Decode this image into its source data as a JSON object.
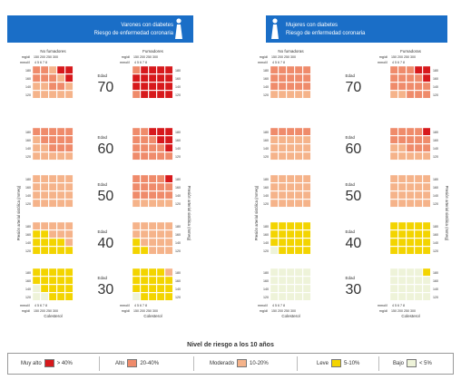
{
  "colors": {
    "header_blue": "#1a6ec7",
    "very_high": "#d7191c",
    "high": "#ef8b6b",
    "moderate": "#f5b38a",
    "low": "#f3d400",
    "very_low": "#eef3d9"
  },
  "panels": [
    {
      "title_line1": "Varones con diabetes",
      "title_line2": "Riesgo de enfermedad coronaria",
      "icon": "male-figure-icon",
      "icon_side": "right",
      "left_grid_label": "No fumadores",
      "right_grid_label": "Fumadores",
      "chol_row_label": "mg/dl",
      "chol_ticks": "150 200 250 300",
      "mmol_row_label": "mmol/l",
      "mmol_ticks": "4  5  6  7  8",
      "bp_axis_label": "Presión arterial sistólica (mmHg)",
      "bp_ticks": [
        "180",
        "160",
        "140",
        "120"
      ],
      "age_label": "Edad",
      "bottom_label": "Colesterol"
    },
    {
      "title_line1": "Mujeres con diabetes",
      "title_line2": "Riesgo de enfermedad coronaria",
      "icon": "female-figure-icon",
      "icon_side": "left",
      "left_grid_label": "No fumadoras",
      "right_grid_label": "Fumadoras",
      "chol_row_label": "mg/dl",
      "chol_ticks": "150 200 250 300",
      "mmol_row_label": "mmol/l",
      "mmol_ticks": "4  5  6  7  8",
      "bp_axis_label": "Presión arterial sistólica (mmHg)",
      "bp_ticks": [
        "180",
        "160",
        "140",
        "120"
      ],
      "age_label": "Edad",
      "bottom_label": "Colesterol"
    }
  ],
  "chart_data": {
    "type": "heatmap",
    "level_codes": {
      "VH": "Muy alto",
      "H": "Alto",
      "M": "Moderado",
      "L": "Leve",
      "VL": "Bajo"
    },
    "x_dimension": "Colesterol (mmol/l: 4, 5, 6, 7, 8)",
    "y_dimension": "Presión arterial sistólica (180, 160, 140, 120)",
    "ages": [
      "70",
      "60",
      "50",
      "40",
      "30"
    ],
    "men": {
      "no_smoker": [
        [
          [
            "H",
            "H",
            "M",
            "VH",
            "VH"
          ],
          [
            "H",
            "H",
            "H",
            "M",
            "VH"
          ],
          [
            "M",
            "M",
            "H",
            "H",
            "M"
          ],
          [
            "M",
            "M",
            "M",
            "M",
            "M"
          ]
        ],
        [
          [
            "H",
            "H",
            "H",
            "H",
            "H"
          ],
          [
            "M",
            "H",
            "H",
            "H",
            "H"
          ],
          [
            "M",
            "M",
            "H",
            "H",
            "H"
          ],
          [
            "M",
            "M",
            "M",
            "M",
            "M"
          ]
        ],
        [
          [
            "M",
            "M",
            "M",
            "M",
            "M"
          ],
          [
            "M",
            "M",
            "M",
            "M",
            "M"
          ],
          [
            "M",
            "M",
            "M",
            "M",
            "M"
          ],
          [
            "M",
            "M",
            "M",
            "M",
            "M"
          ]
        ],
        [
          [
            "M",
            "M",
            "M",
            "M",
            "M"
          ],
          [
            "L",
            "L",
            "M",
            "M",
            "M"
          ],
          [
            "L",
            "L",
            "L",
            "L",
            "M"
          ],
          [
            "L",
            "L",
            "L",
            "L",
            "L"
          ]
        ],
        [
          [
            "L",
            "L",
            "L",
            "L",
            "L"
          ],
          [
            "L",
            "L",
            "L",
            "L",
            "L"
          ],
          [
            "VL",
            "L",
            "L",
            "L",
            "L"
          ],
          [
            "VL",
            "VL",
            "L",
            "L",
            "L"
          ]
        ]
      ],
      "smoker": [
        [
          [
            "H",
            "VH",
            "VH",
            "VH",
            "VH"
          ],
          [
            "VH",
            "VH",
            "VH",
            "VH",
            "VH"
          ],
          [
            "VH",
            "VH",
            "VH",
            "VH",
            "VH"
          ],
          [
            "H",
            "VH",
            "VH",
            "VH",
            "VH"
          ]
        ],
        [
          [
            "H",
            "H",
            "VH",
            "VH",
            "VH"
          ],
          [
            "H",
            "H",
            "H",
            "VH",
            "VH"
          ],
          [
            "H",
            "H",
            "H",
            "H",
            "VH"
          ],
          [
            "H",
            "H",
            "H",
            "H",
            "H"
          ]
        ],
        [
          [
            "H",
            "H",
            "H",
            "H",
            "VH"
          ],
          [
            "H",
            "H",
            "H",
            "H",
            "H"
          ],
          [
            "H",
            "H",
            "H",
            "H",
            "H"
          ],
          [
            "M",
            "M",
            "M",
            "M",
            "M"
          ]
        ],
        [
          [
            "M",
            "M",
            "M",
            "M",
            "M"
          ],
          [
            "M",
            "M",
            "M",
            "M",
            "M"
          ],
          [
            "L",
            "M",
            "M",
            "M",
            "M"
          ],
          [
            "L",
            "L",
            "M",
            "M",
            "M"
          ]
        ],
        [
          [
            "L",
            "L",
            "L",
            "L",
            "M"
          ],
          [
            "L",
            "L",
            "L",
            "L",
            "L"
          ],
          [
            "L",
            "L",
            "L",
            "L",
            "L"
          ],
          [
            "VL",
            "L",
            "L",
            "L",
            "L"
          ]
        ]
      ]
    },
    "women": {
      "no_smoker": [
        [
          [
            "H",
            "H",
            "H",
            "H",
            "H"
          ],
          [
            "H",
            "H",
            "H",
            "H",
            "H"
          ],
          [
            "H",
            "H",
            "H",
            "H",
            "H"
          ],
          [
            "M",
            "M",
            "M",
            "M",
            "M"
          ]
        ],
        [
          [
            "H",
            "H",
            "H",
            "H",
            "H"
          ],
          [
            "M",
            "M",
            "M",
            "M",
            "M"
          ],
          [
            "M",
            "M",
            "M",
            "M",
            "M"
          ],
          [
            "M",
            "M",
            "M",
            "M",
            "M"
          ]
        ],
        [
          [
            "M",
            "M",
            "M",
            "M",
            "M"
          ],
          [
            "M",
            "M",
            "M",
            "M",
            "M"
          ],
          [
            "M",
            "M",
            "M",
            "M",
            "M"
          ],
          [
            "M",
            "M",
            "M",
            "M",
            "M"
          ]
        ],
        [
          [
            "L",
            "L",
            "L",
            "L",
            "L"
          ],
          [
            "L",
            "L",
            "L",
            "L",
            "L"
          ],
          [
            "L",
            "L",
            "L",
            "L",
            "L"
          ],
          [
            "VL",
            "L",
            "L",
            "L",
            "L"
          ]
        ],
        [
          [
            "VL",
            "VL",
            "VL",
            "VL",
            "VL"
          ],
          [
            "VL",
            "VL",
            "VL",
            "VL",
            "VL"
          ],
          [
            "VL",
            "VL",
            "VL",
            "VL",
            "VL"
          ],
          [
            "VL",
            "VL",
            "VL",
            "VL",
            "VL"
          ]
        ]
      ],
      "smoker": [
        [
          [
            "H",
            "H",
            "H",
            "VH",
            "VH"
          ],
          [
            "H",
            "H",
            "H",
            "H",
            "VH"
          ],
          [
            "H",
            "H",
            "H",
            "H",
            "H"
          ],
          [
            "M",
            "M",
            "H",
            "H",
            "H"
          ]
        ],
        [
          [
            "H",
            "H",
            "H",
            "H",
            "VH"
          ],
          [
            "H",
            "H",
            "H",
            "H",
            "H"
          ],
          [
            "M",
            "M",
            "H",
            "H",
            "H"
          ],
          [
            "M",
            "M",
            "M",
            "M",
            "M"
          ]
        ],
        [
          [
            "M",
            "M",
            "M",
            "M",
            "M"
          ],
          [
            "M",
            "M",
            "M",
            "M",
            "M"
          ],
          [
            "M",
            "M",
            "M",
            "M",
            "M"
          ],
          [
            "M",
            "M",
            "M",
            "M",
            "M"
          ]
        ],
        [
          [
            "L",
            "L",
            "L",
            "L",
            "L"
          ],
          [
            "L",
            "L",
            "L",
            "L",
            "L"
          ],
          [
            "L",
            "L",
            "L",
            "L",
            "L"
          ],
          [
            "L",
            "L",
            "L",
            "L",
            "L"
          ]
        ],
        [
          [
            "VL",
            "VL",
            "VL",
            "VL",
            "L"
          ],
          [
            "VL",
            "VL",
            "VL",
            "VL",
            "VL"
          ],
          [
            "VL",
            "VL",
            "VL",
            "VL",
            "VL"
          ],
          [
            "VL",
            "VL",
            "VL",
            "VL",
            "VL"
          ]
        ]
      ]
    }
  },
  "legend": {
    "title": "Nivel de riesgo a los 10 años",
    "items": [
      {
        "key": "VH",
        "label": "Muy alto",
        "range": "> 40%"
      },
      {
        "key": "H",
        "label": "Alto",
        "range": "20-40%"
      },
      {
        "key": "M",
        "label": "Moderado",
        "range": "10-20%"
      },
      {
        "key": "L",
        "label": "Leve",
        "range": "5-10%"
      },
      {
        "key": "VL",
        "label": "Bajo",
        "range": "< 5%"
      }
    ]
  }
}
